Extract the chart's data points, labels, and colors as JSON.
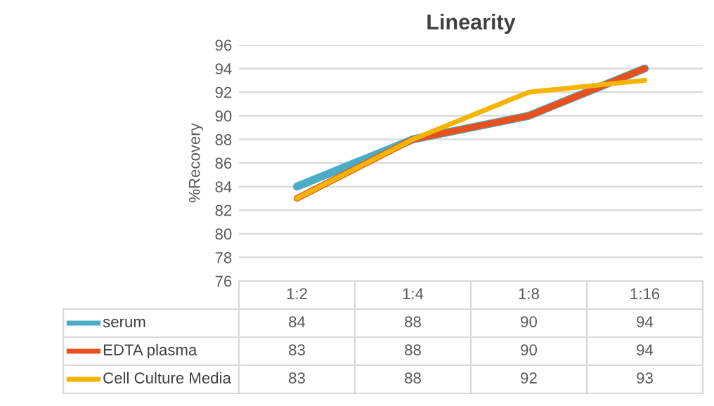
{
  "chart_data": {
    "type": "line",
    "title": "Linearity",
    "ylabel": "%Recovery",
    "categories": [
      "1:2",
      "1:4",
      "1:8",
      "1:16"
    ],
    "series": [
      {
        "name": "serum",
        "color": "#4bacc6",
        "values": [
          84,
          88,
          90,
          94
        ]
      },
      {
        "name": "EDTA plasma",
        "color": "#e8501e",
        "values": [
          83,
          88,
          90,
          94
        ]
      },
      {
        "name": "Cell Culture Media",
        "color": "#f5b400",
        "values": [
          83,
          88,
          92,
          93
        ]
      }
    ],
    "ylim": [
      76,
      96
    ],
    "yticks": [
      76,
      78,
      80,
      82,
      84,
      86,
      88,
      90,
      92,
      94,
      96
    ],
    "grid": "y",
    "legend": "bottom",
    "data_labels": true,
    "marker": "none",
    "line_style": "solid"
  }
}
